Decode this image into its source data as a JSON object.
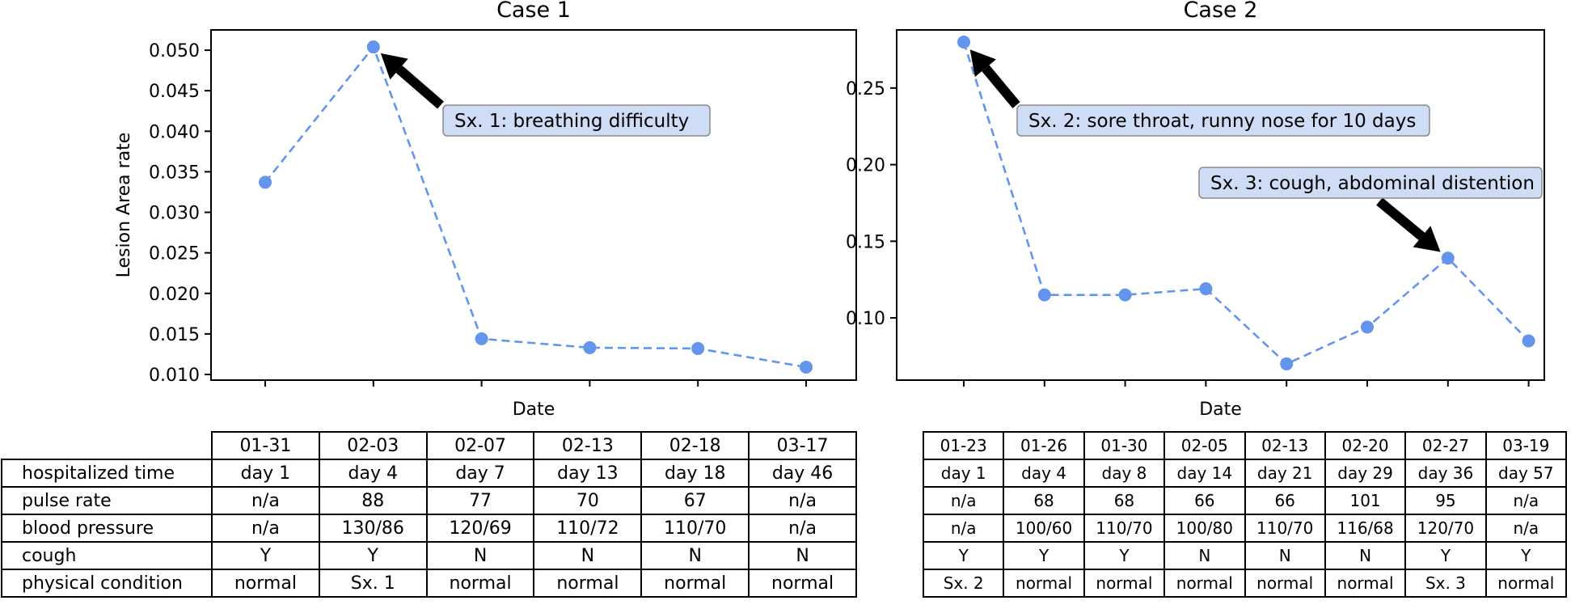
{
  "chart_data": [
    {
      "type": "line",
      "title": "Case 1",
      "xlabel": "Date",
      "ylabel": "Lesion Area rate",
      "x": [
        "01-31",
        "02-03",
        "02-07",
        "02-13",
        "02-18",
        "03-17"
      ],
      "series": [
        {
          "values": [
            0.0337,
            0.0504,
            0.0144,
            0.0133,
            0.0132,
            0.0109
          ],
          "color": "#6495ED"
        }
      ],
      "ylim": [
        0.0093,
        0.0525
      ],
      "yticks": [
        "0.010",
        "0.015",
        "0.020",
        "0.025",
        "0.030",
        "0.035",
        "0.040",
        "0.045",
        "0.050"
      ],
      "grid": false,
      "annotations": [
        {
          "text": "Sx. 1: breathing difficulty",
          "x": "02-03",
          "y": 0.0504
        }
      ],
      "table": {
        "columns": [
          "01-31",
          "02-03",
          "02-07",
          "02-13",
          "02-18",
          "03-17"
        ],
        "rows": [
          {
            "label": "hospitalized time",
            "cells": [
              "day 1",
              "day 4",
              "day 7",
              "day 13",
              "day 18",
              "day 46"
            ]
          },
          {
            "label": "pulse rate",
            "cells": [
              "n/a",
              "88",
              "77",
              "70",
              "67",
              "n/a"
            ]
          },
          {
            "label": "blood pressure",
            "cells": [
              "n/a",
              "130/86",
              "120/69",
              "110/72",
              "110/70",
              "n/a"
            ]
          },
          {
            "label": "cough",
            "cells": [
              "Y",
              "Y",
              "N",
              "N",
              "N",
              "N"
            ]
          },
          {
            "label": "physical condition",
            "cells": [
              "normal",
              "Sx. 1",
              "normal",
              "normal",
              "normal",
              "normal"
            ]
          }
        ]
      }
    },
    {
      "type": "line",
      "title": "Case 2",
      "xlabel": "Date",
      "ylabel": "",
      "x": [
        "01-23",
        "01-26",
        "01-30",
        "02-05",
        "02-13",
        "02-20",
        "02-27",
        "03-19"
      ],
      "series": [
        {
          "values": [
            0.28,
            0.115,
            0.115,
            0.119,
            0.07,
            0.094,
            0.139,
            0.085
          ],
          "color": "#6495ED"
        }
      ],
      "ylim": [
        0.0594,
        0.2879
      ],
      "yticks": [
        "0.10",
        "0.15",
        "0.20",
        "0.25"
      ],
      "grid": false,
      "annotations": [
        {
          "text": "Sx. 2: sore throat, runny nose for 10 days",
          "x": "01-23",
          "y": 0.28
        },
        {
          "text": "Sx. 3: cough, abdominal distention",
          "x": "02-27",
          "y": 0.139
        }
      ],
      "table": {
        "columns": [
          "01-23",
          "01-26",
          "01-30",
          "02-05",
          "02-13",
          "02-20",
          "02-27",
          "03-19"
        ],
        "rows": [
          {
            "cells": [
              "day 1",
              "day 4",
              "day 8",
              "day 14",
              "day 21",
              "day 29",
              "day 36",
              "day 57"
            ]
          },
          {
            "cells": [
              "n/a",
              "68",
              "68",
              "66",
              "66",
              "101",
              "95",
              "n/a"
            ]
          },
          {
            "cells": [
              "n/a",
              "100/60",
              "110/70",
              "100/80",
              "110/70",
              "116/68",
              "120/70",
              "n/a"
            ]
          },
          {
            "cells": [
              "Y",
              "Y",
              "Y",
              "N",
              "N",
              "N",
              "Y",
              "Y"
            ]
          },
          {
            "cells": [
              "Sx. 2",
              "normal",
              "normal",
              "normal",
              "normal",
              "normal",
              "Sx. 3",
              "normal"
            ]
          }
        ]
      }
    }
  ]
}
